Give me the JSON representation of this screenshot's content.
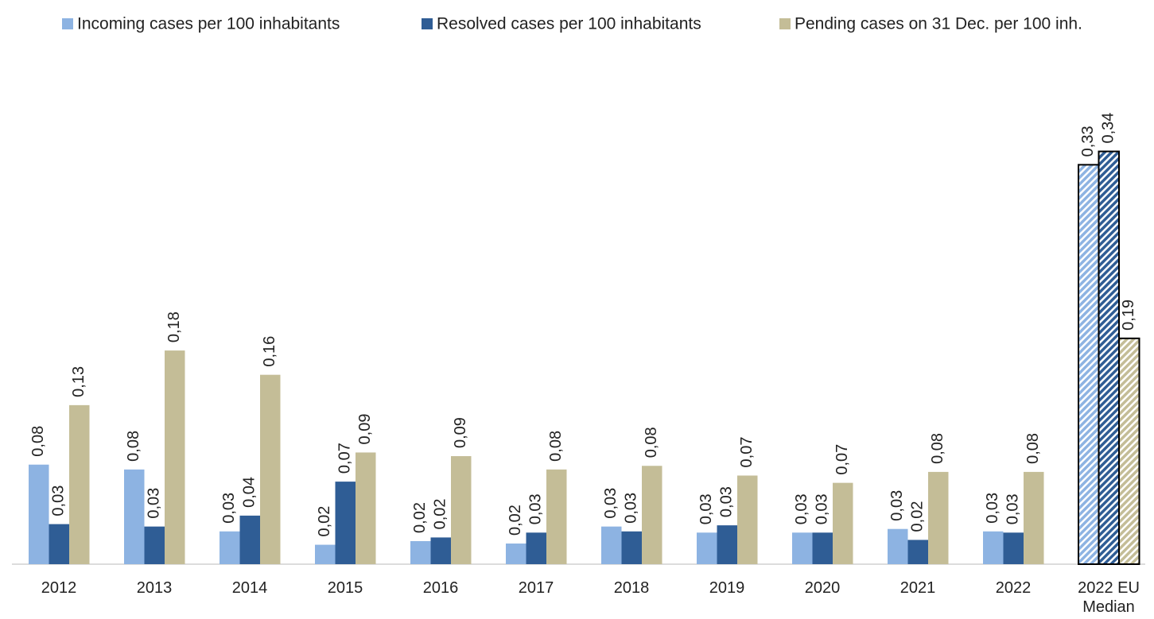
{
  "chart_data": {
    "type": "bar",
    "categories": [
      "2012",
      "2013",
      "2014",
      "2015",
      "2016",
      "2017",
      "2018",
      "2019",
      "2020",
      "2021",
      "2022",
      "2022 EU Median"
    ],
    "series": [
      {
        "name": "Incoming cases per 100 inhabitants",
        "color": "#8db3e2",
        "values": [
          0.082,
          0.078,
          0.027,
          0.016,
          0.019,
          0.017,
          0.031,
          0.026,
          0.026,
          0.029,
          0.027,
          0.329
        ],
        "value_labels": [
          "0,08",
          "0,08",
          "0,03",
          "0,02",
          "0,02",
          "0,02",
          "0,03",
          "0,03",
          "0,03",
          "0,03",
          "0,03",
          "0,33"
        ]
      },
      {
        "name": "Resolved cases per 100 inhabitants",
        "color": "#2f5d95",
        "values": [
          0.033,
          0.031,
          0.04,
          0.068,
          0.022,
          0.026,
          0.027,
          0.032,
          0.026,
          0.02,
          0.026,
          0.34
        ],
        "value_labels": [
          "0,03",
          "0,03",
          "0,04",
          "0,07",
          "0,02",
          "0,03",
          "0,03",
          "0,03",
          "0,03",
          "0,02",
          "0,03",
          "0,34"
        ]
      },
      {
        "name": "Pending cases on 31 Dec. per 100 inh.",
        "color": "#c4bd97",
        "values": [
          0.131,
          0.176,
          0.156,
          0.092,
          0.089,
          0.078,
          0.081,
          0.073,
          0.067,
          0.076,
          0.076,
          0.186
        ],
        "value_labels": [
          "0,13",
          "0,18",
          "0,16",
          "0,09",
          "0,09",
          "0,08",
          "0,08",
          "0,07",
          "0,07",
          "0,08",
          "0,08",
          "0,19"
        ]
      }
    ],
    "ylim": [
      0,
      0.36
    ],
    "hatch_last": true,
    "legend": "top"
  }
}
